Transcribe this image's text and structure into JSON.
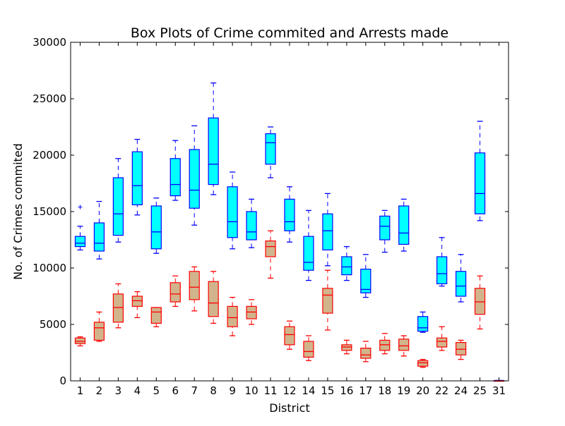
{
  "chart_data": {
    "type": "box",
    "title": "Box Plots of Crime commited and Arrests made",
    "xlabel": "District",
    "ylabel": "No. of Crimes commited",
    "ylim": [
      0,
      30000
    ],
    "yticks": [
      0,
      5000,
      10000,
      15000,
      20000,
      25000,
      30000
    ],
    "grid": false,
    "categories": [
      "1",
      "2",
      "3",
      "4",
      "5",
      "6",
      "7",
      "8",
      "9",
      "10",
      "11",
      "12",
      "14",
      "15",
      "16",
      "17",
      "18",
      "19",
      "20",
      "22",
      "24",
      "25",
      "31"
    ],
    "series": [
      {
        "color": "#00ffff",
        "stroke": "#0000ff",
        "boxes": [
          {
            "wlo": 11600,
            "q1": 11900,
            "med": 12200,
            "q3": 12800,
            "whi": 13700,
            "fliers": [
              15400
            ]
          },
          {
            "wlo": 10800,
            "q1": 11500,
            "med": 12200,
            "q3": 14000,
            "whi": 15900,
            "fliers": []
          },
          {
            "wlo": 12300,
            "q1": 12900,
            "med": 14800,
            "q3": 18000,
            "whi": 19700,
            "fliers": []
          },
          {
            "wlo": 14700,
            "q1": 15600,
            "med": 17300,
            "q3": 20300,
            "whi": 21400,
            "fliers": []
          },
          {
            "wlo": 11300,
            "q1": 11700,
            "med": 13200,
            "q3": 15500,
            "whi": 16200,
            "fliers": []
          },
          {
            "wlo": 16000,
            "q1": 16400,
            "med": 17400,
            "q3": 19700,
            "whi": 21300,
            "fliers": []
          },
          {
            "wlo": 13800,
            "q1": 15300,
            "med": 16900,
            "q3": 20500,
            "whi": 22600,
            "fliers": []
          },
          {
            "wlo": 16500,
            "q1": 17400,
            "med": 19200,
            "q3": 23300,
            "whi": 26400,
            "fliers": []
          },
          {
            "wlo": 11700,
            "q1": 12700,
            "med": 14100,
            "q3": 17200,
            "whi": 18500,
            "fliers": []
          },
          {
            "wlo": 11800,
            "q1": 12500,
            "med": 13200,
            "q3": 15000,
            "whi": 16100,
            "fliers": []
          },
          {
            "wlo": 18000,
            "q1": 19200,
            "med": 21100,
            "q3": 21900,
            "whi": 22500,
            "fliers": []
          },
          {
            "wlo": 12300,
            "q1": 13300,
            "med": 14100,
            "q3": 16100,
            "whi": 17200,
            "fliers": []
          },
          {
            "wlo": 8900,
            "q1": 9800,
            "med": 10500,
            "q3": 12800,
            "whi": 15100,
            "fliers": []
          },
          {
            "wlo": 10200,
            "q1": 11600,
            "med": 13300,
            "q3": 14800,
            "whi": 16600,
            "fliers": []
          },
          {
            "wlo": 8900,
            "q1": 9400,
            "med": 10100,
            "q3": 11000,
            "whi": 11900,
            "fliers": []
          },
          {
            "wlo": 7400,
            "q1": 7800,
            "med": 8100,
            "q3": 9900,
            "whi": 11200,
            "fliers": []
          },
          {
            "wlo": 11400,
            "q1": 12500,
            "med": 13700,
            "q3": 14600,
            "whi": 15100,
            "fliers": []
          },
          {
            "wlo": 11500,
            "q1": 12100,
            "med": 13100,
            "q3": 15500,
            "whi": 16100,
            "fliers": []
          },
          {
            "wlo": 4300,
            "q1": 4400,
            "med": 4700,
            "q3": 5700,
            "whi": 6100,
            "fliers": []
          },
          {
            "wlo": 8400,
            "q1": 8600,
            "med": 9500,
            "q3": 11000,
            "whi": 12700,
            "fliers": []
          },
          {
            "wlo": 7000,
            "q1": 7500,
            "med": 8400,
            "q3": 9700,
            "whi": 11200,
            "fliers": []
          },
          {
            "wlo": 14200,
            "q1": 14800,
            "med": 16600,
            "q3": 20200,
            "whi": 23000,
            "fliers": []
          },
          {
            "wlo": 30,
            "q1": 30,
            "med": 30,
            "q3": 30,
            "whi": 30,
            "fliers": []
          }
        ]
      },
      {
        "color": "#d2b48c",
        "stroke": "#ff0000",
        "boxes": [
          {
            "wlo": 3100,
            "q1": 3300,
            "med": 3500,
            "q3": 3800,
            "whi": 3900,
            "fliers": []
          },
          {
            "wlo": 3500,
            "q1": 3600,
            "med": 4700,
            "q3": 5200,
            "whi": 6100,
            "fliers": []
          },
          {
            "wlo": 4700,
            "q1": 5200,
            "med": 6500,
            "q3": 7700,
            "whi": 8600,
            "fliers": []
          },
          {
            "wlo": 5600,
            "q1": 6600,
            "med": 7100,
            "q3": 7500,
            "whi": 7900,
            "fliers": []
          },
          {
            "wlo": 4800,
            "q1": 5100,
            "med": 6100,
            "q3": 6500,
            "whi": 6500,
            "fliers": []
          },
          {
            "wlo": 6600,
            "q1": 7000,
            "med": 7700,
            "q3": 8700,
            "whi": 9300,
            "fliers": []
          },
          {
            "wlo": 6200,
            "q1": 7200,
            "med": 8300,
            "q3": 9700,
            "whi": 10100,
            "fliers": []
          },
          {
            "wlo": 5100,
            "q1": 5700,
            "med": 6900,
            "q3": 8800,
            "whi": 9700,
            "fliers": []
          },
          {
            "wlo": 4000,
            "q1": 4800,
            "med": 5600,
            "q3": 6600,
            "whi": 7400,
            "fliers": []
          },
          {
            "wlo": 5000,
            "q1": 5500,
            "med": 6100,
            "q3": 6600,
            "whi": 7200,
            "fliers": []
          },
          {
            "wlo": 9100,
            "q1": 11000,
            "med": 11900,
            "q3": 12400,
            "whi": 13300,
            "fliers": []
          },
          {
            "wlo": 2800,
            "q1": 3200,
            "med": 4100,
            "q3": 4800,
            "whi": 5300,
            "fliers": []
          },
          {
            "wlo": 1800,
            "q1": 2100,
            "med": 2600,
            "q3": 3500,
            "whi": 4000,
            "fliers": []
          },
          {
            "wlo": 4500,
            "q1": 6000,
            "med": 7600,
            "q3": 8200,
            "whi": 9800,
            "fliers": []
          },
          {
            "wlo": 2400,
            "q1": 2700,
            "med": 3000,
            "q3": 3200,
            "whi": 3600,
            "fliers": []
          },
          {
            "wlo": 1700,
            "q1": 2000,
            "med": 2300,
            "q3": 2900,
            "whi": 3500,
            "fliers": []
          },
          {
            "wlo": 2400,
            "q1": 2700,
            "med": 3200,
            "q3": 3600,
            "whi": 4200,
            "fliers": []
          },
          {
            "wlo": 2200,
            "q1": 2700,
            "med": 3100,
            "q3": 3700,
            "whi": 4000,
            "fliers": []
          },
          {
            "wlo": 1200,
            "q1": 1300,
            "med": 1600,
            "q3": 1800,
            "whi": 1900,
            "fliers": []
          },
          {
            "wlo": 2700,
            "q1": 3000,
            "med": 3500,
            "q3": 3800,
            "whi": 4800,
            "fliers": []
          },
          {
            "wlo": 1900,
            "q1": 2300,
            "med": 2800,
            "q3": 3400,
            "whi": 3600,
            "fliers": []
          },
          {
            "wlo": 4600,
            "q1": 5900,
            "med": 7000,
            "q3": 8200,
            "whi": 9300,
            "fliers": []
          },
          {
            "wlo": 0,
            "q1": 0,
            "med": 0,
            "q3": 0,
            "whi": 0,
            "fliers": []
          }
        ]
      }
    ]
  }
}
